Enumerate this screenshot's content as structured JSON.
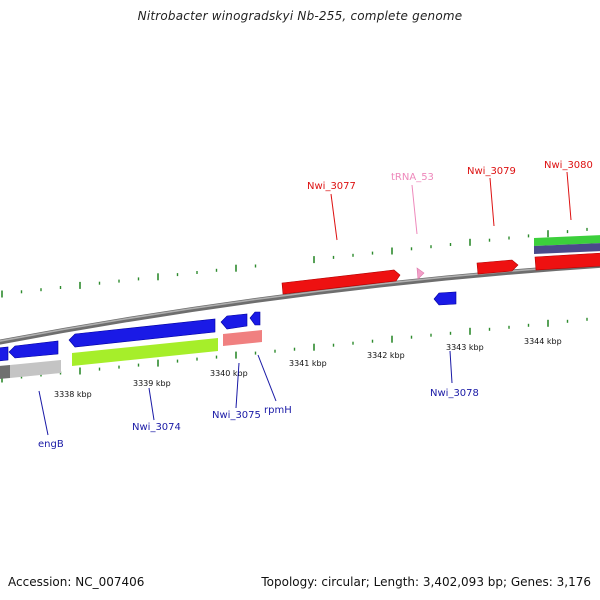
{
  "title": "Nitrobacter winogradskyi Nb-255, complete genome",
  "footer": {
    "accession": "Accession: NC_007406",
    "summary": "Topology: circular; Length: 3,402,093 bp; Genes: 3,176"
  },
  "scale": {
    "labels": [
      "3338 kbp",
      "3339 kbp",
      "3340 kbp",
      "3341 kbp",
      "3342 kbp",
      "3343 kbp",
      "3344 kbp"
    ]
  },
  "colors": {
    "backbone": "#8c8c8c",
    "tick": "#2e8b2e",
    "forward_cds": "#ee1111",
    "reverse_cds": "#1a1ae6",
    "trna": "#f2a0c8",
    "cog_lime": "#a6ee2a",
    "cog_salmon": "#f08080",
    "cog_gray": "#b8b8b8",
    "cog_green": "#3ccf3c",
    "cog_navy": "#4a4a8a",
    "label_red": "#dd1111",
    "label_blue": "#1a1aa6",
    "label_pink": "#ee88bb"
  },
  "genes": {
    "labels": [
      {
        "name": "engB",
        "color": "blue"
      },
      {
        "name": "Nwi_3074",
        "color": "blue"
      },
      {
        "name": "Nwi_3075",
        "color": "blue"
      },
      {
        "name": "rpmH",
        "color": "blue"
      },
      {
        "name": "Nwi_3077",
        "color": "red"
      },
      {
        "name": "tRNA_53",
        "color": "pink"
      },
      {
        "name": "Nwi_3078",
        "color": "blue"
      },
      {
        "name": "Nwi_3079",
        "color": "red"
      },
      {
        "name": "Nwi_3080",
        "color": "red"
      }
    ]
  }
}
